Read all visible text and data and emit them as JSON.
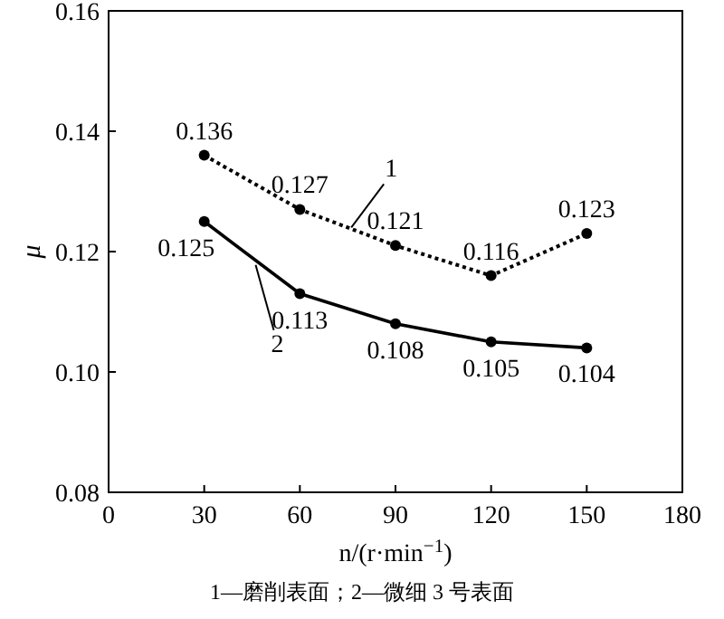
{
  "chart_data": {
    "type": "line",
    "xlabel": "n/(r·min$^{−1}$)",
    "ylabel": "μ",
    "x": [
      30,
      60,
      90,
      120,
      150
    ],
    "xlim": [
      0,
      180
    ],
    "xticks": [
      0,
      30,
      60,
      90,
      120,
      150,
      180
    ],
    "ylim": [
      0.08,
      0.16
    ],
    "yticks": [
      0.08,
      {
        "value": 0.1,
        "label": "0.10"
      },
      0.12,
      0.14,
      0.16
    ],
    "series": [
      {
        "name": "1",
        "color": "#000000",
        "line_style": "dotted",
        "values": [
          0.136,
          0.127,
          0.121,
          0.116,
          0.123
        ]
      },
      {
        "name": "2",
        "color": "#000000",
        "line_style": "solid",
        "values": [
          0.125,
          0.113,
          0.108,
          0.105,
          0.104
        ]
      }
    ],
    "marker": "circle",
    "data_labels": true,
    "grid": false,
    "annotations": [
      "1—磨削表面；2—微细 3 号表面"
    ]
  }
}
